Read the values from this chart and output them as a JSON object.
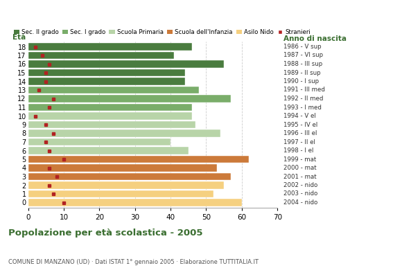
{
  "ages": [
    18,
    17,
    16,
    15,
    14,
    13,
    12,
    11,
    10,
    9,
    8,
    7,
    6,
    5,
    4,
    3,
    2,
    1,
    0
  ],
  "bar_values": [
    46,
    41,
    55,
    44,
    44,
    48,
    57,
    46,
    46,
    47,
    54,
    40,
    45,
    62,
    53,
    57,
    55,
    52,
    60
  ],
  "stranieri_values": [
    2,
    4,
    6,
    5,
    5,
    3,
    7,
    6,
    2,
    5,
    7,
    5,
    6,
    10,
    6,
    8,
    6,
    7,
    10
  ],
  "right_labels": [
    "1986 - V sup",
    "1987 - VI sup",
    "1988 - III sup",
    "1989 - II sup",
    "1990 - I sup",
    "1991 - III med",
    "1992 - II med",
    "1993 - I med",
    "1994 - V el",
    "1995 - IV el",
    "1996 - III el",
    "1997 - II el",
    "1998 - I el",
    "1999 - mat",
    "2000 - mat",
    "2001 - mat",
    "2002 - nido",
    "2003 - nido",
    "2004 - nido"
  ],
  "colors": {
    "Sec. II grado": "#4a7c3f",
    "Sec. I grado": "#7aad6a",
    "Scuola Primaria": "#b8d4a8",
    "Scuola dell'Infanzia": "#cc7a3a",
    "Asilo Nido": "#f5d080",
    "Stranieri": "#b22222"
  },
  "age_to_school": {
    "18": "Sec. II grado",
    "17": "Sec. II grado",
    "16": "Sec. II grado",
    "15": "Sec. II grado",
    "14": "Sec. II grado",
    "13": "Sec. I grado",
    "12": "Sec. I grado",
    "11": "Sec. I grado",
    "10": "Scuola Primaria",
    "9": "Scuola Primaria",
    "8": "Scuola Primaria",
    "7": "Scuola Primaria",
    "6": "Scuola Primaria",
    "5": "Scuola dell'Infanzia",
    "4": "Scuola dell'Infanzia",
    "3": "Scuola dell'Infanzia",
    "2": "Asilo Nido",
    "1": "Asilo Nido",
    "0": "Asilo Nido"
  },
  "title": "Popolazione per età scolastica - 2005",
  "subtitle": "COMUNE DI MANZANO (UD) · Dati ISTAT 1° gennaio 2005 · Elaborazione TUTTITALIA.IT",
  "xlabel_eta": "Età",
  "xlabel_anno": "Anno di nascita",
  "xlim": [
    0,
    70
  ],
  "xticks": [
    0,
    10,
    20,
    30,
    40,
    50,
    60,
    70
  ],
  "background_color": "#ffffff",
  "bar_height": 0.82,
  "legend_order": [
    "Sec. II grado",
    "Sec. I grado",
    "Scuola Primaria",
    "Scuola dell'Infanzia",
    "Asilo Nido",
    "Stranieri"
  ]
}
